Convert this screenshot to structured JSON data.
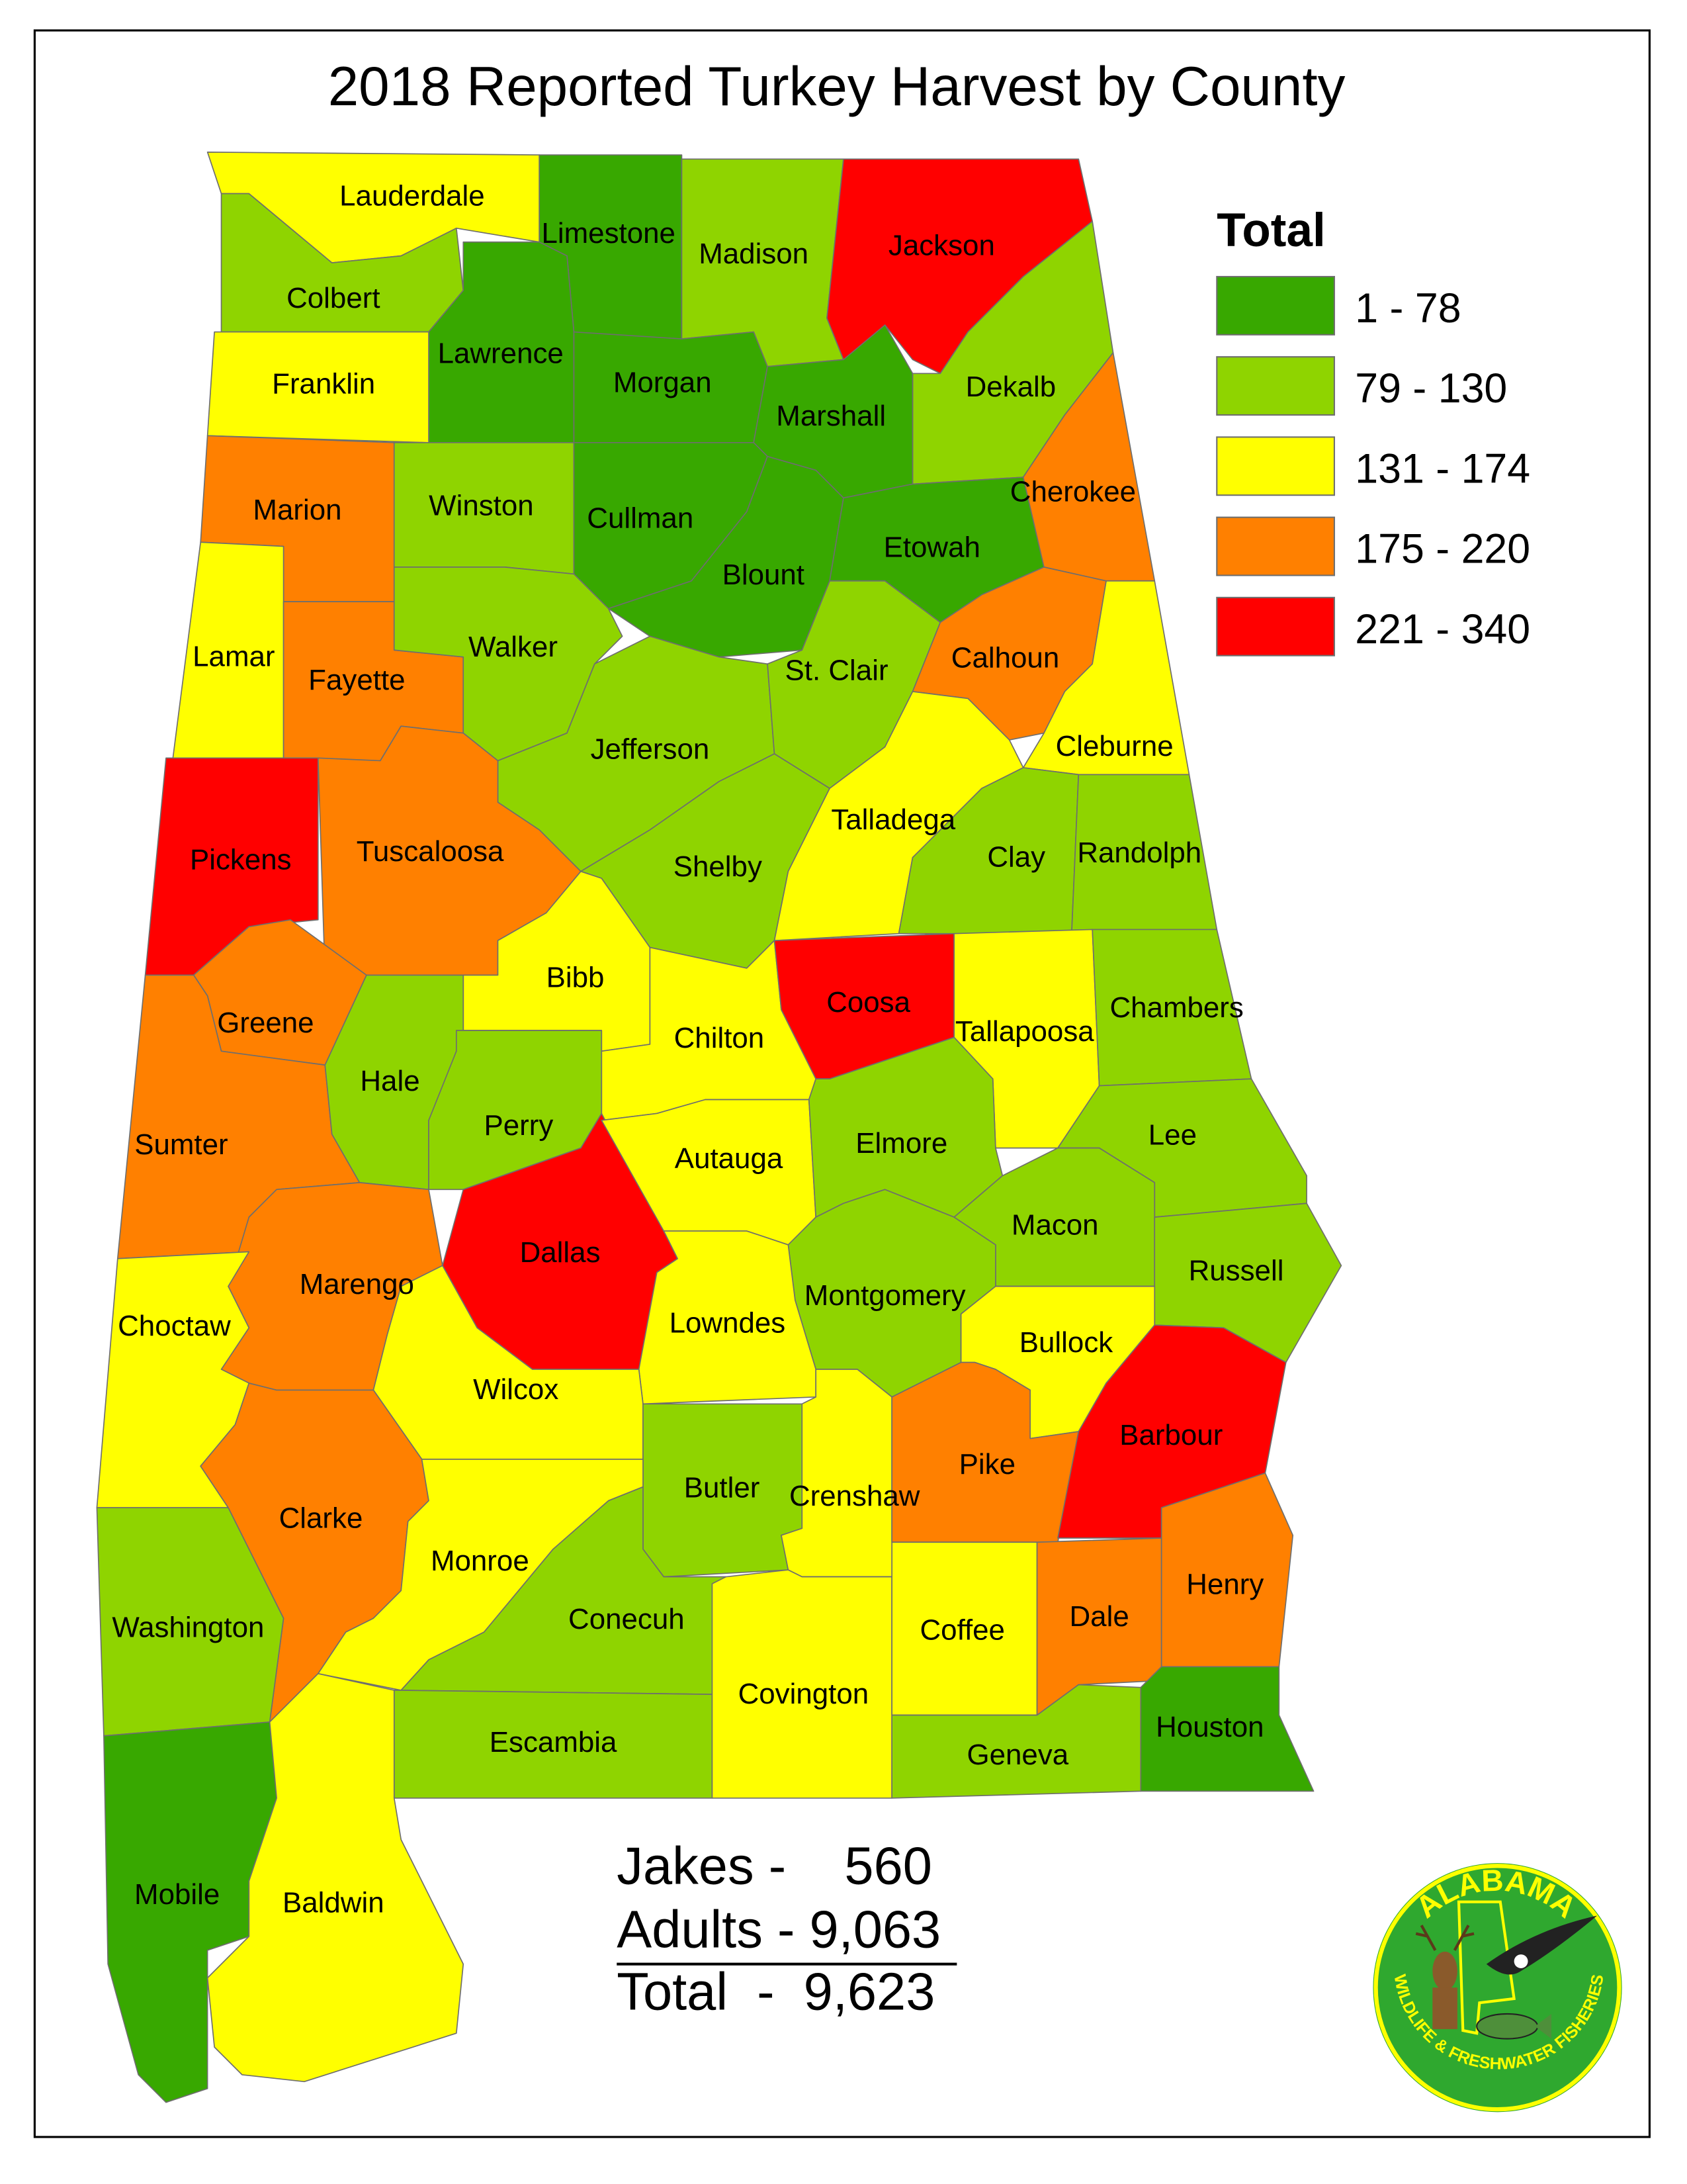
{
  "title": "2018 Reported Turkey Harvest by County",
  "legend": {
    "title": "Total",
    "classes": [
      {
        "range": "1 - 78",
        "color": "#38A800"
      },
      {
        "range": "79 - 130",
        "color": "#8FD400"
      },
      {
        "range": "131 - 174",
        "color": "#FFFF00"
      },
      {
        "range": "175 - 220",
        "color": "#FF8000"
      },
      {
        "range": "221 - 340",
        "color": "#FF0000"
      }
    ]
  },
  "counties": [
    {
      "name": "Lauderdale",
      "class": "131 - 174"
    },
    {
      "name": "Colbert",
      "class": "79 - 130"
    },
    {
      "name": "Limestone",
      "class": "1 - 78"
    },
    {
      "name": "Madison",
      "class": "79 - 130"
    },
    {
      "name": "Jackson",
      "class": "221 - 340"
    },
    {
      "name": "Dekalb",
      "class": "79 - 130"
    },
    {
      "name": "Lawrence",
      "class": "1 - 78"
    },
    {
      "name": "Franklin",
      "class": "131 - 174"
    },
    {
      "name": "Morgan",
      "class": "1 - 78"
    },
    {
      "name": "Marshall",
      "class": "1 - 78"
    },
    {
      "name": "Marion",
      "class": "175 - 220"
    },
    {
      "name": "Winston",
      "class": "79 - 130"
    },
    {
      "name": "Cullman",
      "class": "1 - 78"
    },
    {
      "name": "Blount",
      "class": "1 - 78"
    },
    {
      "name": "Etowah",
      "class": "1 - 78"
    },
    {
      "name": "Cherokee",
      "class": "175 - 220"
    },
    {
      "name": "Lamar",
      "class": "131 - 174"
    },
    {
      "name": "Fayette",
      "class": "175 - 220"
    },
    {
      "name": "Walker",
      "class": "79 - 130"
    },
    {
      "name": "Jefferson",
      "class": "79 - 130"
    },
    {
      "name": "St. Clair",
      "class": "79 - 130"
    },
    {
      "name": "Calhoun",
      "class": "175 - 220"
    },
    {
      "name": "Cleburne",
      "class": "131 - 174"
    },
    {
      "name": "Pickens",
      "class": "221 - 340"
    },
    {
      "name": "Tuscaloosa",
      "class": "175 - 220"
    },
    {
      "name": "Shelby",
      "class": "79 - 130"
    },
    {
      "name": "Talladega",
      "class": "131 - 174"
    },
    {
      "name": "Clay",
      "class": "79 - 130"
    },
    {
      "name": "Randolph",
      "class": "79 - 130"
    },
    {
      "name": "Bibb",
      "class": "131 - 174"
    },
    {
      "name": "Chilton",
      "class": "131 - 174"
    },
    {
      "name": "Coosa",
      "class": "221 - 340"
    },
    {
      "name": "Tallapoosa",
      "class": "131 - 174"
    },
    {
      "name": "Chambers",
      "class": "79 - 130"
    },
    {
      "name": "Greene",
      "class": "175 - 220"
    },
    {
      "name": "Sumter",
      "class": "175 - 220"
    },
    {
      "name": "Hale",
      "class": "79 - 130"
    },
    {
      "name": "Perry",
      "class": "79 - 130"
    },
    {
      "name": "Marengo",
      "class": "175 - 220"
    },
    {
      "name": "Choctaw",
      "class": "131 - 174"
    },
    {
      "name": "Dallas",
      "class": "221 - 340"
    },
    {
      "name": "Autauga",
      "class": "131 - 174"
    },
    {
      "name": "Elmore",
      "class": "79 - 130"
    },
    {
      "name": "Lee",
      "class": "79 - 130"
    },
    {
      "name": "Macon",
      "class": "79 - 130"
    },
    {
      "name": "Russell",
      "class": "79 - 130"
    },
    {
      "name": "Montgomery",
      "class": "79 - 130"
    },
    {
      "name": "Bullock",
      "class": "131 - 174"
    },
    {
      "name": "Lowndes",
      "class": "131 - 174"
    },
    {
      "name": "Wilcox",
      "class": "131 - 174"
    },
    {
      "name": "Clarke",
      "class": "175 - 220"
    },
    {
      "name": "Butler",
      "class": "79 - 130"
    },
    {
      "name": "Crenshaw",
      "class": "131 - 174"
    },
    {
      "name": "Pike",
      "class": "175 - 220"
    },
    {
      "name": "Barbour",
      "class": "221 - 340"
    },
    {
      "name": "Washington",
      "class": "79 - 130"
    },
    {
      "name": "Monroe",
      "class": "131 - 174"
    },
    {
      "name": "Conecuh",
      "class": "79 - 130"
    },
    {
      "name": "Escambia",
      "class": "79 - 130"
    },
    {
      "name": "Covington",
      "class": "131 - 174"
    },
    {
      "name": "Coffee",
      "class": "131 - 174"
    },
    {
      "name": "Dale",
      "class": "175 - 220"
    },
    {
      "name": "Henry",
      "class": "175 - 220"
    },
    {
      "name": "Geneva",
      "class": "79 - 130"
    },
    {
      "name": "Houston",
      "class": "1 - 78"
    },
    {
      "name": "Mobile",
      "class": "1 - 78"
    },
    {
      "name": "Baldwin",
      "class": "131 - 174"
    }
  ],
  "totals": {
    "jakes": "Jakes -    560",
    "adults": "Adults - 9,063",
    "total": "Total  -  9,623"
  },
  "logo": {
    "top_text": "ALABAMA",
    "bottom_text": "WILDLIFE & FRESHWATER FISHERIES"
  }
}
